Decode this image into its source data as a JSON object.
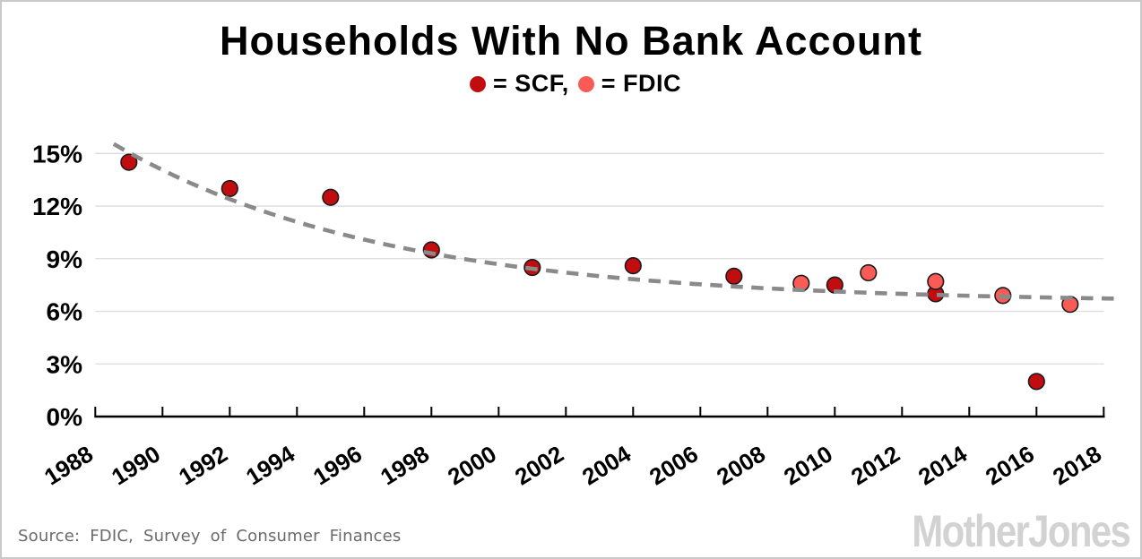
{
  "title": "Households With No Bank Account",
  "legend": {
    "scf_label": "= SCF,",
    "fdic_label": "= FDIC"
  },
  "footer": {
    "source": "Source: FDIC, Survey of Consumer Finances",
    "logo": "MotherJones"
  },
  "colors": {
    "scf": "#c20d10",
    "fdic": "#fb5b55",
    "trend": "#8a8a8a",
    "grid": "#dcdcdc",
    "axis": "#000000",
    "tick_text": "#000000",
    "source_text": "#6a6a6a",
    "logo_gray": "#d2d2d2"
  },
  "chart_data": {
    "type": "scatter",
    "title": "Households With No Bank Account",
    "legend_position": "top",
    "x_axis": {
      "range": [
        1988,
        2018
      ],
      "tick_years": [
        1988,
        1990,
        1992,
        1994,
        1996,
        1998,
        2000,
        2002,
        2004,
        2006,
        2008,
        2010,
        2012,
        2014,
        2016,
        2018
      ],
      "gridlines": false
    },
    "y_axis": {
      "range": [
        0,
        15
      ],
      "unit": "%",
      "tick_values": [
        0,
        3,
        6,
        9,
        12,
        15
      ],
      "tick_labels": [
        "0%",
        "3%",
        "6%",
        "9%",
        "12%",
        "15%"
      ],
      "gridlines": true
    },
    "series": [
      {
        "name": "SCF",
        "color": "#c20d10",
        "points": [
          {
            "year": 1989,
            "value": 14.5
          },
          {
            "year": 1992,
            "value": 13.0
          },
          {
            "year": 1995,
            "value": 12.5
          },
          {
            "year": 1998,
            "value": 9.5
          },
          {
            "year": 2001,
            "value": 8.5
          },
          {
            "year": 2004,
            "value": 8.6
          },
          {
            "year": 2007,
            "value": 8.0
          },
          {
            "year": 2010,
            "value": 7.5
          },
          {
            "year": 2013,
            "value": 7.0
          },
          {
            "year": 2016,
            "value": 2.0
          }
        ]
      },
      {
        "name": "FDIC",
        "color": "#fb5b55",
        "points": [
          {
            "year": 2009,
            "value": 7.6
          },
          {
            "year": 2011,
            "value": 8.2
          },
          {
            "year": 2013,
            "value": 7.7
          },
          {
            "year": 2015,
            "value": 6.9
          },
          {
            "year": 2017,
            "value": 6.4
          }
        ]
      }
    ],
    "trendline": {
      "style": "dashed",
      "color": "#8a8a8a",
      "model": "value = 6.5 + 9.68 * exp(-0.124 * (year - 1988))",
      "params": {
        "asymptote": 6.5,
        "amplitude": 9.68,
        "decay": 0.124
      },
      "year_start": 1988.55,
      "year_end": 2018.35
    }
  }
}
